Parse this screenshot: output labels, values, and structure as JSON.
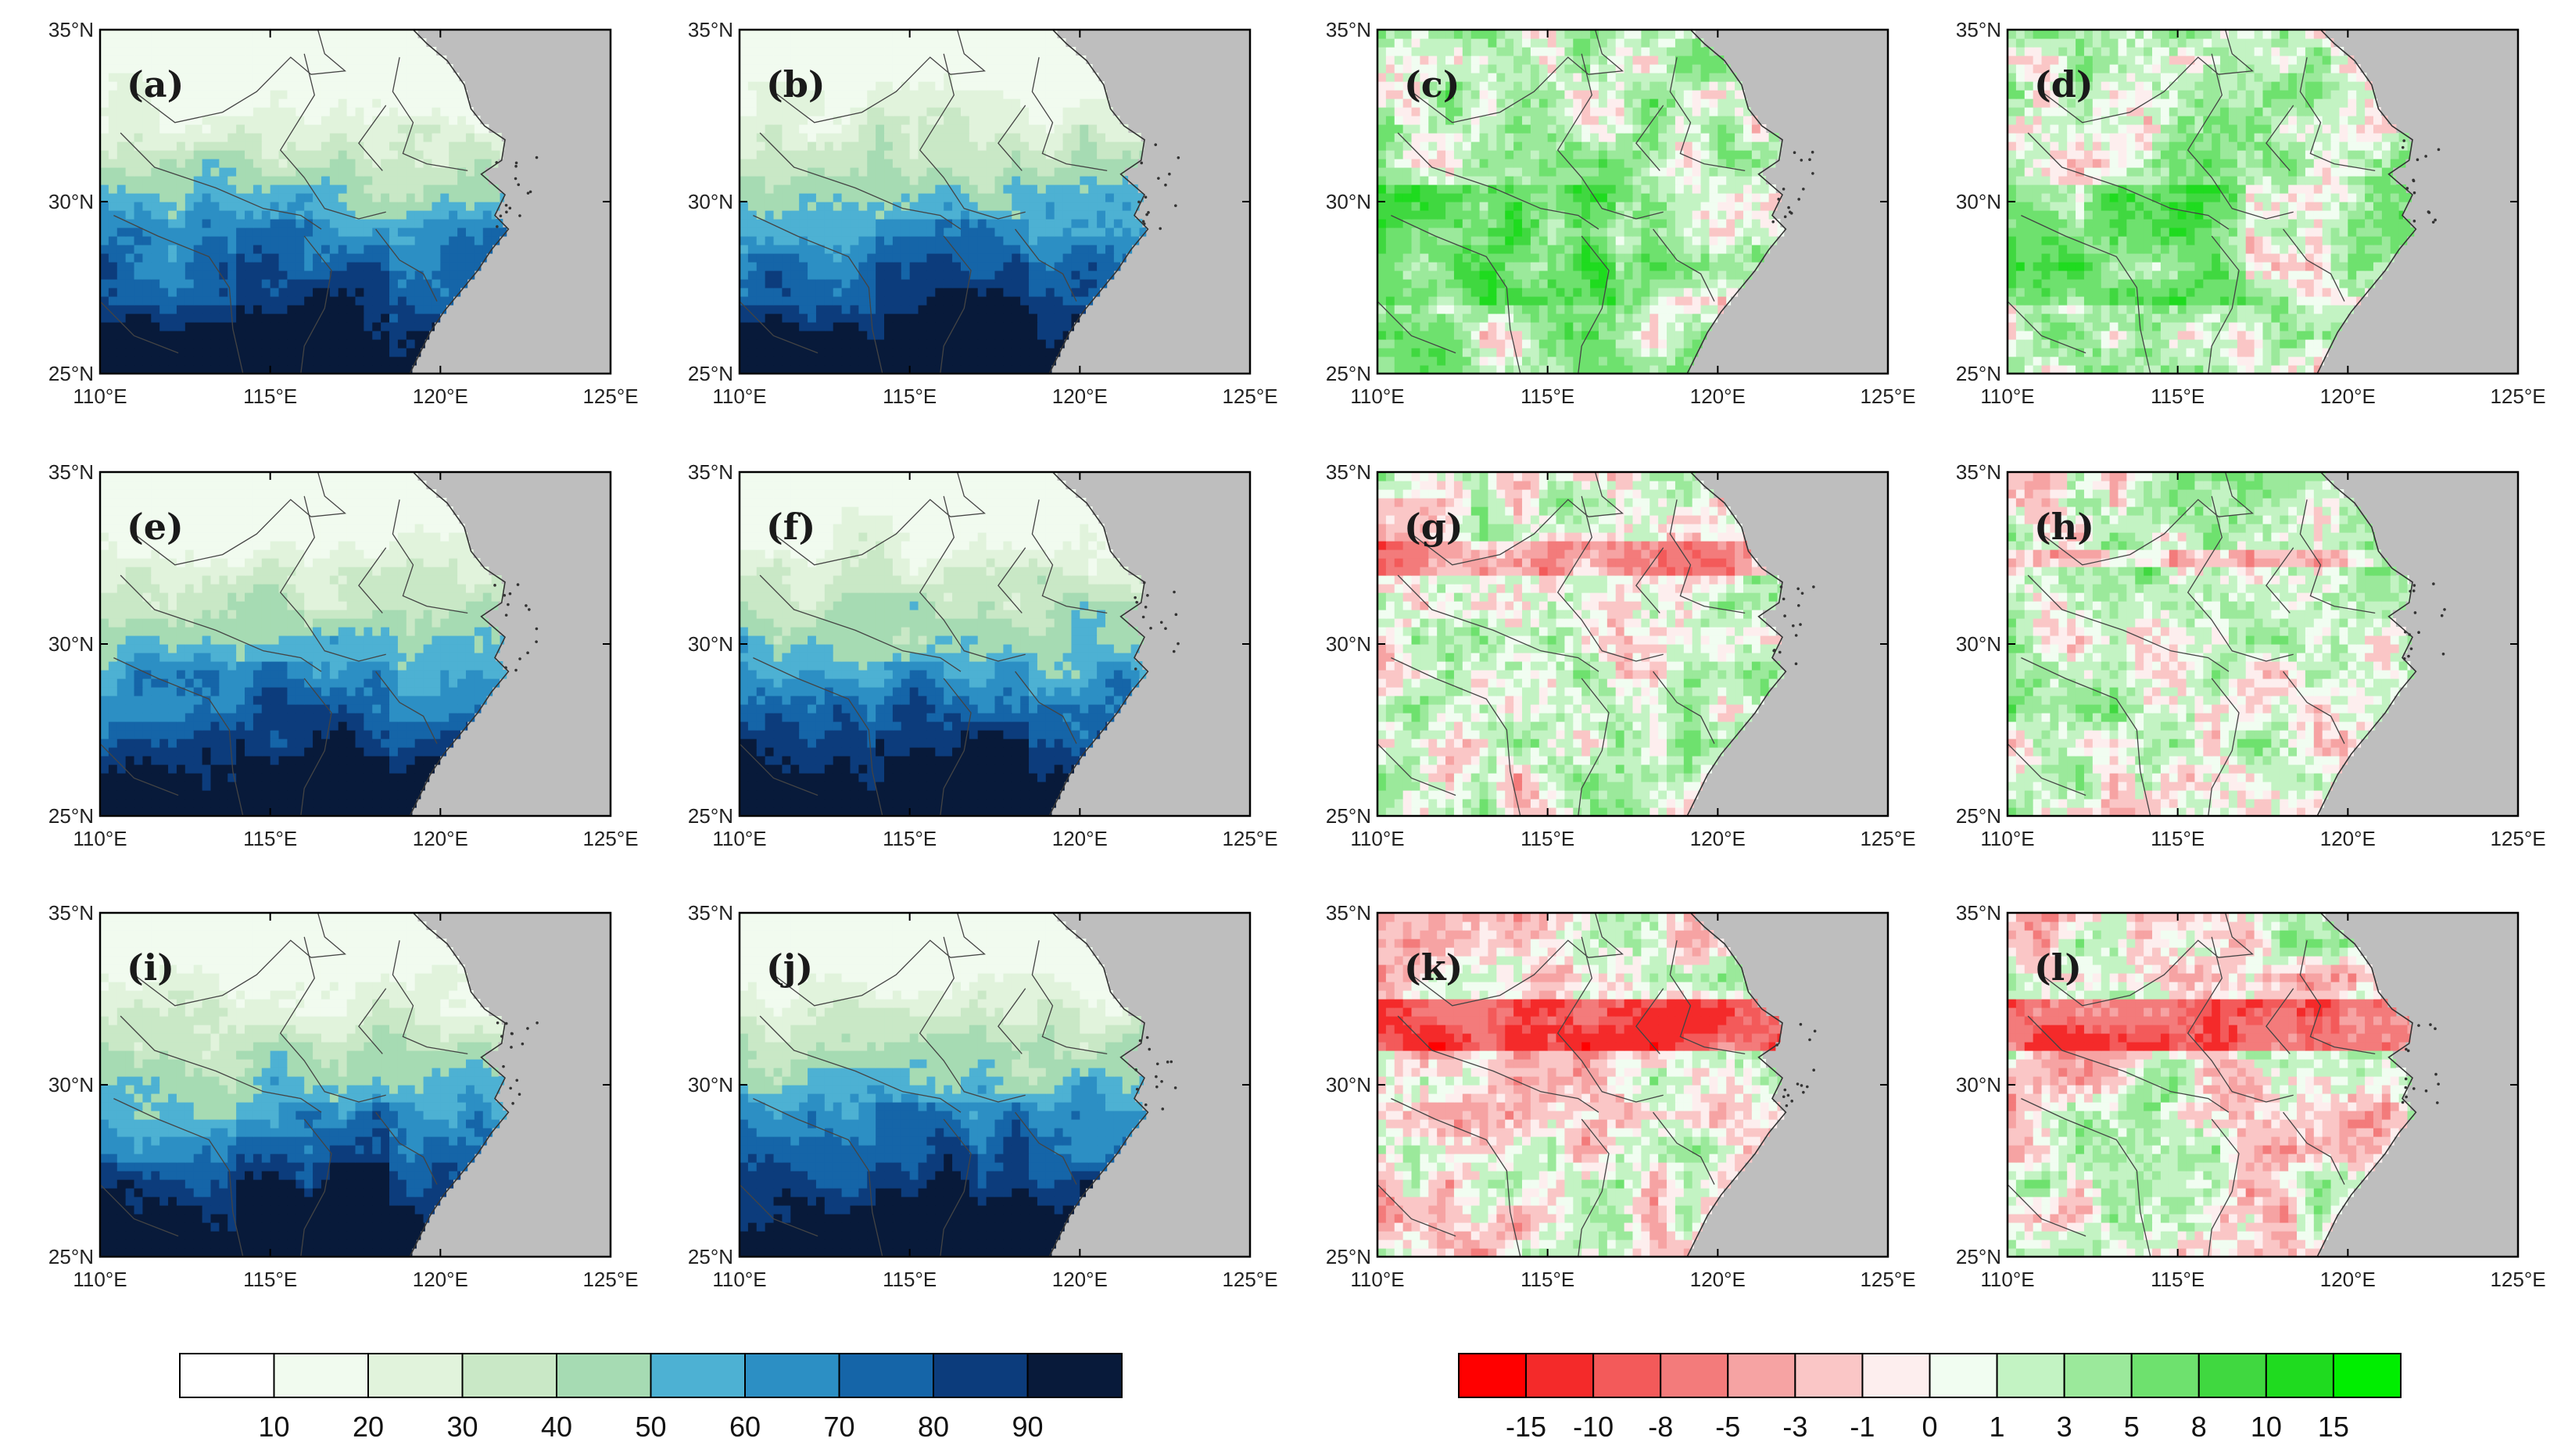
{
  "chart_data": {
    "type": "heatmap",
    "description_grid": "3x4 panels of spatial fields over eastern China; columns 1-2 absolute values, columns 3-4 differences",
    "x_ticks": [
      "110°E",
      "115°E",
      "120°E",
      "125°E"
    ],
    "y_ticks": [
      "25°N",
      "30°N",
      "35°N"
    ],
    "xlim": [
      110,
      125
    ],
    "ylim": [
      25,
      35
    ],
    "panels": [
      {
        "label": "(a)",
        "kind": "abs",
        "variant": 0
      },
      {
        "label": "(b)",
        "kind": "abs",
        "variant": 1
      },
      {
        "label": "(c)",
        "kind": "diff",
        "variant": 0
      },
      {
        "label": "(d)",
        "kind": "diff",
        "variant": 1
      },
      {
        "label": "(e)",
        "kind": "abs",
        "variant": 2
      },
      {
        "label": "(f)",
        "kind": "abs",
        "variant": 3
      },
      {
        "label": "(g)",
        "kind": "diff",
        "variant": 2
      },
      {
        "label": "(h)",
        "kind": "diff",
        "variant": 3
      },
      {
        "label": "(i)",
        "kind": "abs",
        "variant": 4
      },
      {
        "label": "(j)",
        "kind": "abs",
        "variant": 5
      },
      {
        "label": "(k)",
        "kind": "diff",
        "variant": 4
      },
      {
        "label": "(l)",
        "kind": "diff",
        "variant": 5
      }
    ],
    "colorbar_abs": {
      "labels": [
        "10",
        "20",
        "30",
        "40",
        "50",
        "60",
        "70",
        "80",
        "90"
      ],
      "colors": [
        "#ffffff",
        "#f1fbef",
        "#e1f3dc",
        "#c9e8c6",
        "#a6dbb3",
        "#4db1d3",
        "#2c8fc4",
        "#1565a8",
        "#0c3c7c",
        "#081a3a"
      ]
    },
    "colorbar_diff": {
      "labels": [
        "-15",
        "-10",
        "-8",
        "-5",
        "-3",
        "-1",
        "0",
        "1",
        "3",
        "5",
        "8",
        "10",
        "15"
      ],
      "colors": [
        "#ff0000",
        "#f42a2a",
        "#f35a5a",
        "#f37b7b",
        "#f6a3a3",
        "#fac6c6",
        "#fdeeee",
        "#f1fdf1",
        "#c3f3c3",
        "#9be99b",
        "#6ee16e",
        "#40d840",
        "#1fdb1f",
        "#00ee00"
      ]
    },
    "land_color": "#bebebe"
  }
}
